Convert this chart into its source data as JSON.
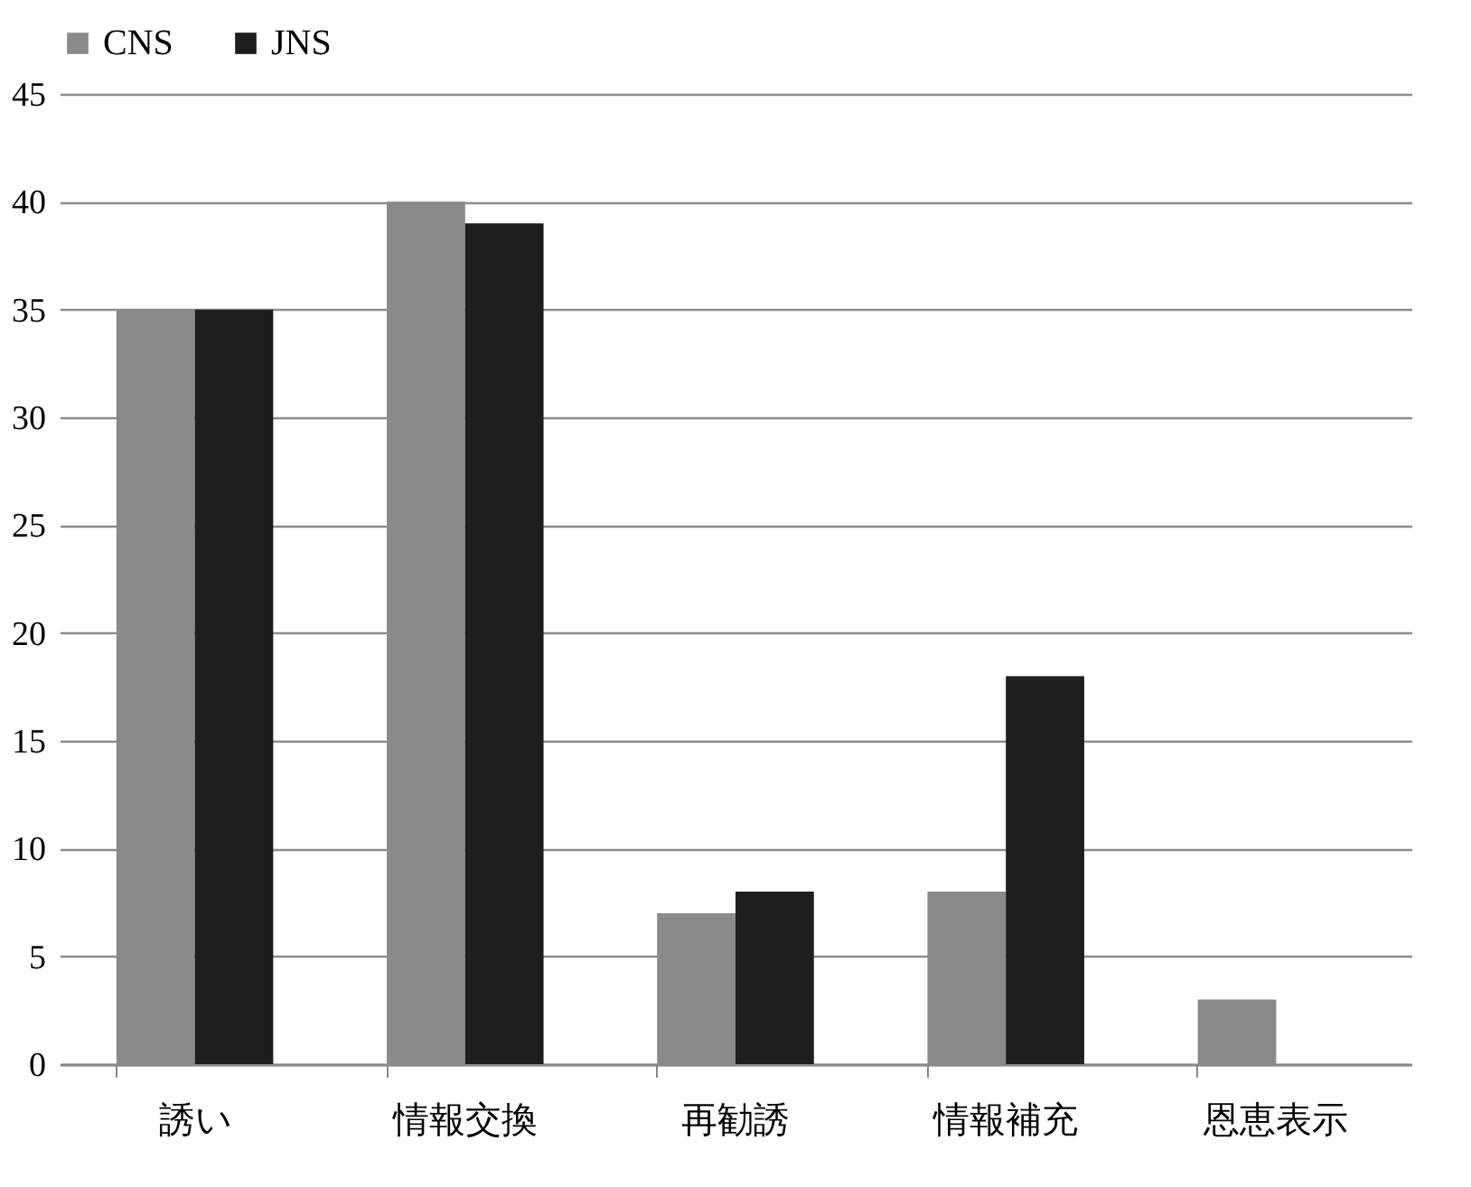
{
  "chart_data": {
    "type": "bar",
    "categories": [
      "誘い",
      "情報交換",
      "再勧誘",
      "情報補充",
      "恩恵表示"
    ],
    "series": [
      {
        "name": "CNS",
        "color": "#8a8a8a",
        "values": [
          35,
          40,
          7,
          8,
          3
        ]
      },
      {
        "name": "JNS",
        "color": "#1e1e1e",
        "values": [
          35,
          39,
          8,
          18,
          0
        ]
      }
    ],
    "ylim": [
      0,
      45
    ],
    "yticks": [
      0,
      5,
      10,
      15,
      20,
      25,
      30,
      35,
      40,
      45
    ],
    "grid": "y",
    "legend": "top"
  }
}
